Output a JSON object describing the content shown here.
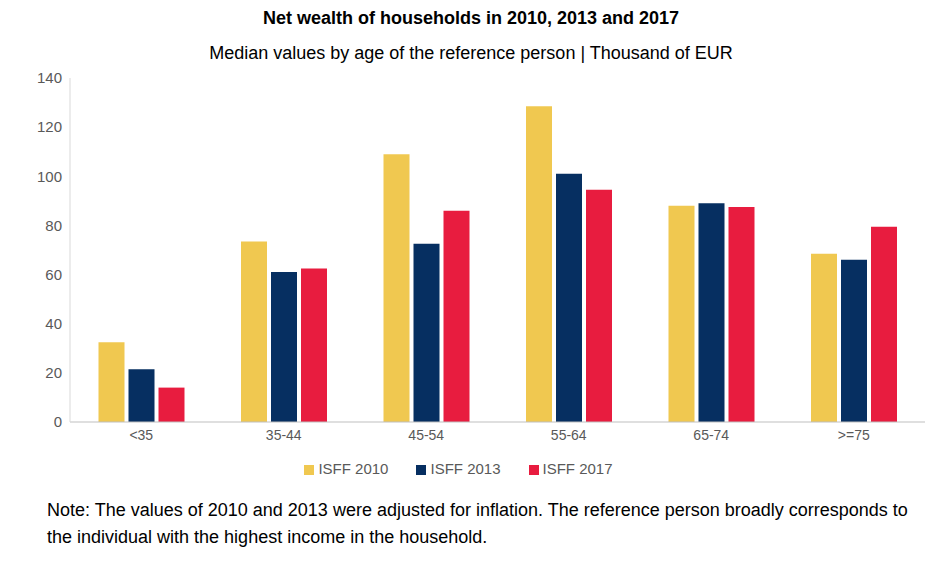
{
  "chart_data": {
    "type": "bar",
    "title": "Net wealth of households in 2010, 2013 and 2017",
    "subtitle": "Median values by age of the reference person | Thousand of EUR",
    "note": "Note: The values of 2010 and 2013 were adjusted for inflation. The reference person broadly corresponds to the individual with the highest income in the household.",
    "categories": [
      "<35",
      "35-44",
      "45-54",
      "55-64",
      "65-74",
      ">=75"
    ],
    "series": [
      {
        "name": "ISFF 2010",
        "color": "#f0c850",
        "values": [
          32.5,
          73.5,
          109,
          128.5,
          88,
          68.5
        ]
      },
      {
        "name": "ISFF 2013",
        "color": "#062f61",
        "values": [
          21.5,
          61,
          72.5,
          101,
          89,
          66
        ]
      },
      {
        "name": "ISFF 2017",
        "color": "#e81c3f",
        "values": [
          14,
          62.5,
          86,
          94.5,
          87.5,
          79.5
        ]
      }
    ],
    "ylim": [
      0,
      140
    ],
    "yticks": [
      0,
      20,
      40,
      60,
      80,
      100,
      120,
      140
    ],
    "grid": false,
    "legend": "bottom"
  }
}
